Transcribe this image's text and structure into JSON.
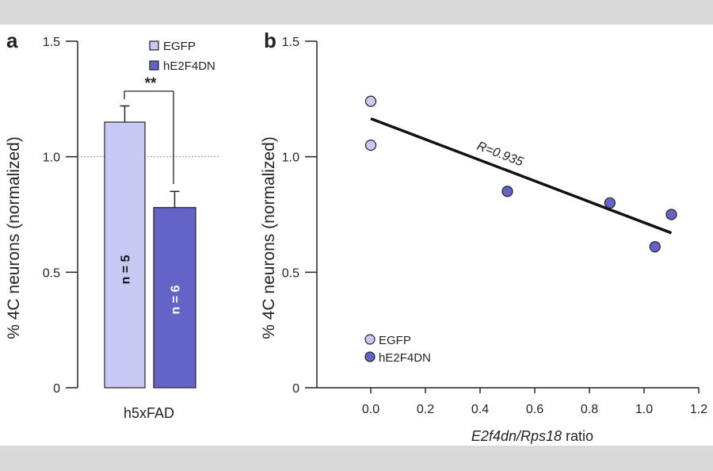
{
  "colors": {
    "egfp": "#c8c8f4",
    "he2f4dn": "#6464c8",
    "axis": "#222222",
    "band": "#d9d9d9"
  },
  "chart_data": [
    {
      "panel": "a",
      "type": "bar",
      "title": "",
      "categories": [
        "EGFP",
        "hE2F4DN"
      ],
      "group_label": "h5xFAD",
      "values": [
        1.15,
        0.78
      ],
      "error_upper": [
        1.22,
        0.85
      ],
      "n_labels": [
        "n = 5",
        "n = 6"
      ],
      "significance": "**",
      "reference_line": 1.0,
      "ylabel": "% 4C neurons (normalized)",
      "ylim": [
        0,
        1.5
      ],
      "yticks": [
        "0",
        "0.5",
        "1.0",
        "1.5"
      ],
      "legend": [
        "EGFP",
        "hE2F4DN"
      ],
      "legend_position": "top-right"
    },
    {
      "panel": "b",
      "type": "scatter",
      "xlabel_italic_parts": [
        "E2f4dn",
        "/",
        "Rps18"
      ],
      "xlabel_suffix": " ratio",
      "ylabel": "% 4C neurons (normalized)",
      "xlim": [
        -0.15,
        1.2
      ],
      "ylim": [
        0,
        1.5
      ],
      "xticks": [
        "0.0",
        "0.2",
        "0.4",
        "0.6",
        "0.8",
        "1.0",
        "1.2"
      ],
      "yticks": [
        "0",
        "0.5",
        "1.0",
        "1.5"
      ],
      "series": [
        {
          "name": "EGFP",
          "points": [
            [
              0.0,
              1.24
            ],
            [
              0.0,
              1.05
            ]
          ]
        },
        {
          "name": "hE2F4DN",
          "points": [
            [
              0.5,
              0.85
            ],
            [
              0.875,
              0.8
            ],
            [
              1.04,
              0.61
            ],
            [
              1.1,
              0.75
            ]
          ]
        }
      ],
      "fit_line": [
        [
          0.0,
          1.165
        ],
        [
          1.1,
          0.67
        ]
      ],
      "annotation": "R=0.935",
      "legend": [
        "EGFP",
        "hE2F4DN"
      ],
      "legend_position": "bottom-left"
    }
  ],
  "panel_labels": [
    "a",
    "b"
  ]
}
